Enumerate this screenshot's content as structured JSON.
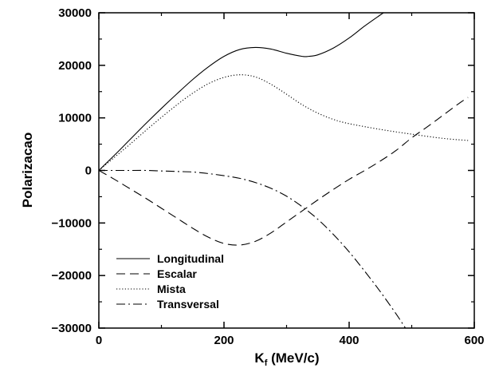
{
  "chart_data": {
    "type": "line",
    "xlabel": "K",
    "xlabel_sub": "f",
    "xlabel_units": " (MeV/c)",
    "ylabel": "Polarizacao",
    "xlim": [
      0,
      600
    ],
    "ylim": [
      -30000,
      30000
    ],
    "xticks": [
      0,
      200,
      400,
      600
    ],
    "xtick_labels": [
      "0",
      "200",
      "400",
      "600"
    ],
    "yticks": [
      -30000,
      -20000,
      -10000,
      0,
      10000,
      20000,
      30000
    ],
    "ytick_labels": [
      "−30000",
      "−20000",
      "−10000",
      "0",
      "10000",
      "20000",
      "30000"
    ],
    "grid": false,
    "legend_position": "bottom-left",
    "series": [
      {
        "name": "Longitudinal",
        "dash": "solid",
        "x": [
          0,
          25,
          50,
          75,
          100,
          125,
          150,
          175,
          200,
          225,
          250,
          275,
          300,
          325,
          335,
          350,
          375,
          400,
          425,
          450,
          455
        ],
        "y": [
          0,
          2900,
          5900,
          8900,
          11800,
          14600,
          17300,
          19700,
          21700,
          23000,
          23400,
          23100,
          22300,
          21700,
          21700,
          22000,
          23300,
          25200,
          27500,
          29600,
          30000
        ]
      },
      {
        "name": "Escalar",
        "dash": "dashed",
        "x": [
          0,
          25,
          50,
          75,
          100,
          125,
          150,
          175,
          200,
          225,
          250,
          275,
          300,
          325,
          350,
          375,
          400,
          425,
          450,
          475,
          500,
          525,
          550,
          575,
          590
        ],
        "y": [
          0,
          -1700,
          -3500,
          -5300,
          -7200,
          -9100,
          -11000,
          -12700,
          -13900,
          -14200,
          -13500,
          -11900,
          -9800,
          -7700,
          -5600,
          -3600,
          -1700,
          0,
          1800,
          3800,
          6200,
          8300,
          10500,
          12700,
          13900
        ]
      },
      {
        "name": "Mista",
        "dash": "dotted",
        "x": [
          0,
          25,
          50,
          75,
          100,
          125,
          150,
          175,
          200,
          225,
          250,
          275,
          300,
          325,
          350,
          375,
          400,
          450,
          500,
          550,
          590
        ],
        "y": [
          0,
          2500,
          5000,
          7600,
          10100,
          12500,
          14700,
          16500,
          17700,
          18200,
          17800,
          16400,
          14500,
          12500,
          10900,
          9700,
          8900,
          7800,
          6900,
          6100,
          5700
        ]
      },
      {
        "name": "Transversal",
        "dash": "dashdot",
        "x": [
          0,
          25,
          50,
          75,
          100,
          125,
          150,
          175,
          200,
          225,
          250,
          275,
          300,
          325,
          350,
          375,
          400,
          425,
          450,
          475,
          490
        ],
        "y": [
          0,
          0,
          0,
          0,
          -100,
          -200,
          -300,
          -600,
          -1000,
          -1500,
          -2300,
          -3400,
          -4900,
          -6900,
          -9300,
          -12200,
          -15500,
          -19200,
          -23100,
          -27300,
          -30000
        ]
      }
    ]
  }
}
